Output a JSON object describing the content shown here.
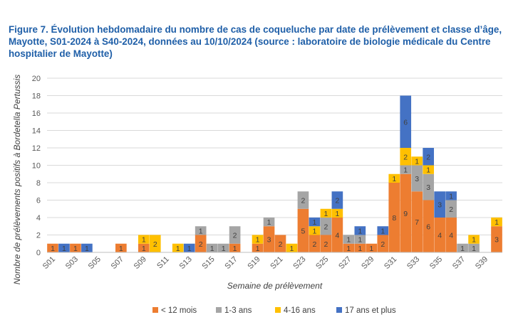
{
  "chart_data": {
    "type": "bar",
    "stacked": true,
    "title": "Figure 7. Évolution hebdomadaire du nombre de cas de coqueluche par date de prélèvement et classe d’âge, Mayotte, S01-2024 à S40-2024, données au 10/10/2024 (source : laboratoire de biologie médicale du Centre hospitalier de Mayotte)",
    "xlabel": "Semaine de prélèvement",
    "ylabel": "Nombre de prélèvements positifs à Bordetella Pertussis",
    "ylim": [
      0,
      20
    ],
    "yticks": [
      0,
      2,
      4,
      6,
      8,
      10,
      12,
      14,
      16,
      18,
      20
    ],
    "categories": [
      "S01",
      "S02",
      "S03",
      "S04",
      "S05",
      "S06",
      "S07",
      "S08",
      "S09",
      "S10",
      "S11",
      "S12",
      "S13",
      "S14",
      "S15",
      "S16",
      "S17",
      "S18",
      "S19",
      "S20",
      "S21",
      "S22",
      "S23",
      "S24",
      "S25",
      "S26",
      "S27",
      "S28",
      "S29",
      "S30",
      "S31",
      "S32",
      "S33",
      "S34",
      "S35",
      "S36",
      "S37",
      "S38",
      "S39",
      "S40"
    ],
    "tick_labels": [
      "S01",
      "S03",
      "S05",
      "S07",
      "S09",
      "S11",
      "S13",
      "S15",
      "S17",
      "S19",
      "S21",
      "S23",
      "S25",
      "S27",
      "S29",
      "S31",
      "S33",
      "S35",
      "S37",
      "S39"
    ],
    "series": [
      {
        "name": "< 12 mois",
        "color": "#ed7d31",
        "values": [
          1,
          0,
          1,
          0,
          0,
          0,
          1,
          0,
          1,
          0,
          0,
          0,
          0,
          2,
          0,
          0,
          1,
          0,
          1,
          3,
          2,
          0,
          5,
          2,
          2,
          4,
          1,
          1,
          1,
          2,
          8,
          9,
          7,
          6,
          4,
          4,
          0,
          0,
          0,
          3
        ]
      },
      {
        "name": "1-3 ans",
        "color": "#a5a5a5",
        "values": [
          0,
          0,
          0,
          0,
          0,
          0,
          0,
          0,
          0,
          0,
          0,
          0,
          0,
          1,
          1,
          1,
          2,
          0,
          0,
          1,
          0,
          0,
          2,
          0,
          2,
          0,
          1,
          1,
          0,
          0,
          0,
          1,
          3,
          3,
          0,
          2,
          1,
          1,
          0,
          0
        ]
      },
      {
        "name": "4-16 ans",
        "color": "#ffc000",
        "values": [
          0,
          0,
          0,
          0,
          0,
          0,
          0,
          0,
          1,
          2,
          0,
          1,
          0,
          0,
          0,
          0,
          0,
          0,
          1,
          0,
          0,
          1,
          0,
          1,
          1,
          1,
          0,
          0,
          0,
          0,
          1,
          2,
          1,
          1,
          0,
          0,
          0,
          1,
          0,
          1
        ]
      },
      {
        "name": "17 ans et plus",
        "color": "#4472c4",
        "values": [
          0,
          1,
          0,
          1,
          0,
          0,
          0,
          0,
          0,
          0,
          0,
          0,
          1,
          0,
          0,
          0,
          0,
          0,
          0,
          0,
          0,
          0,
          0,
          1,
          0,
          2,
          0,
          1,
          0,
          1,
          0,
          6,
          0,
          2,
          3,
          1,
          0,
          0,
          0,
          0
        ]
      }
    ],
    "grid": true,
    "legend": "bottom"
  }
}
